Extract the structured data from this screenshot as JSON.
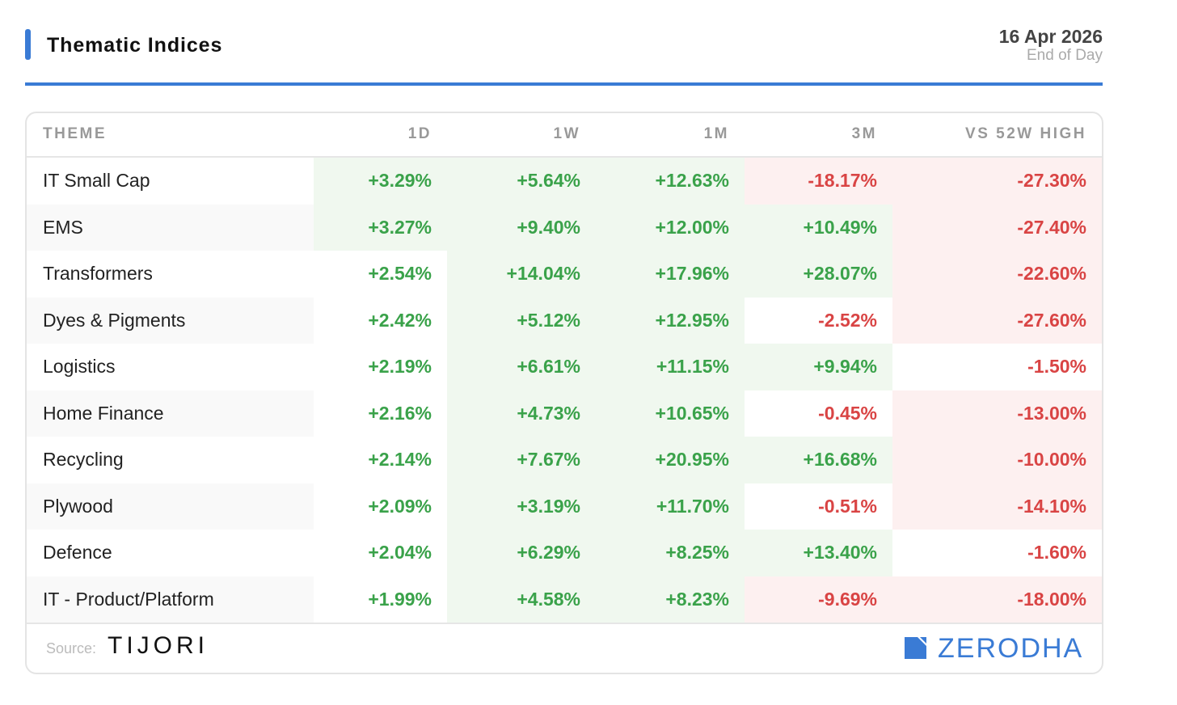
{
  "header": {
    "title": "Thematic Indices",
    "date": "16 Apr 2026",
    "subtitle": "End of Day"
  },
  "colors": {
    "accent": "#3a7bd5",
    "positive": "#3aa24a",
    "negative": "#d94444",
    "positive_bg": "#f0f8ef",
    "negative_bg": "#fdf0f0",
    "zebra_bg": "#f9f9f9"
  },
  "table": {
    "columns": [
      "THEME",
      "1D",
      "1W",
      "1M",
      "3M",
      "VS 52W HIGH"
    ],
    "rows": [
      {
        "name": "IT Small Cap",
        "values": [
          "+3.29%",
          "+5.64%",
          "+12.63%",
          "-18.17%",
          "-27.30%"
        ],
        "highlight": [
          "pos",
          "pos",
          "pos",
          "neg",
          "neg"
        ]
      },
      {
        "name": "EMS",
        "values": [
          "+3.27%",
          "+9.40%",
          "+12.00%",
          "+10.49%",
          "-27.40%"
        ],
        "highlight": [
          "pos",
          "pos",
          "pos",
          "pos",
          "neg"
        ]
      },
      {
        "name": "Transformers",
        "values": [
          "+2.54%",
          "+14.04%",
          "+17.96%",
          "+28.07%",
          "-22.60%"
        ],
        "highlight": [
          "none",
          "pos",
          "pos",
          "pos",
          "neg"
        ]
      },
      {
        "name": "Dyes & Pigments",
        "values": [
          "+2.42%",
          "+5.12%",
          "+12.95%",
          "-2.52%",
          "-27.60%"
        ],
        "highlight": [
          "none",
          "pos",
          "pos",
          "none",
          "neg"
        ]
      },
      {
        "name": "Logistics",
        "values": [
          "+2.19%",
          "+6.61%",
          "+11.15%",
          "+9.94%",
          "-1.50%"
        ],
        "highlight": [
          "none",
          "pos",
          "pos",
          "pos",
          "none"
        ]
      },
      {
        "name": "Home Finance",
        "values": [
          "+2.16%",
          "+4.73%",
          "+10.65%",
          "-0.45%",
          "-13.00%"
        ],
        "highlight": [
          "none",
          "pos",
          "pos",
          "none",
          "neg"
        ]
      },
      {
        "name": "Recycling",
        "values": [
          "+2.14%",
          "+7.67%",
          "+20.95%",
          "+16.68%",
          "-10.00%"
        ],
        "highlight": [
          "none",
          "pos",
          "pos",
          "pos",
          "neg"
        ]
      },
      {
        "name": "Plywood",
        "values": [
          "+2.09%",
          "+3.19%",
          "+11.70%",
          "-0.51%",
          "-14.10%"
        ],
        "highlight": [
          "none",
          "pos",
          "pos",
          "none",
          "neg"
        ]
      },
      {
        "name": "Defence",
        "values": [
          "+2.04%",
          "+6.29%",
          "+8.25%",
          "+13.40%",
          "-1.60%"
        ],
        "highlight": [
          "none",
          "pos",
          "pos",
          "pos",
          "none"
        ]
      },
      {
        "name": "IT - Product/Platform",
        "values": [
          "+1.99%",
          "+4.58%",
          "+8.23%",
          "-9.69%",
          "-18.00%"
        ],
        "highlight": [
          "none",
          "pos",
          "pos",
          "neg",
          "neg"
        ]
      }
    ]
  },
  "footer": {
    "source_label": "Source:",
    "source_brand": "TIJORI",
    "brand": "ZERODHA",
    "brand_icon": "zerodha-logo-icon"
  }
}
